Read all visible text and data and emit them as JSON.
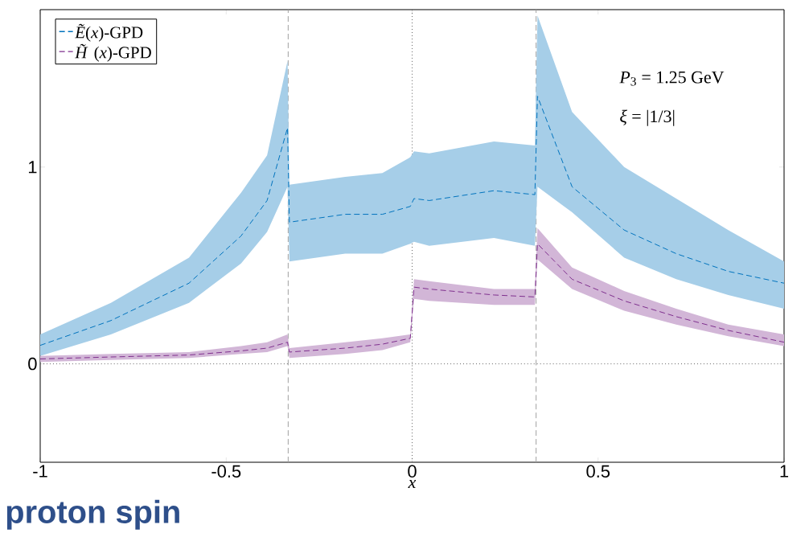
{
  "chart_data": {
    "type": "line",
    "xlabel": "x",
    "xlim": [
      -1,
      1
    ],
    "ylim": [
      -0.5,
      1.8
    ],
    "xticks": [
      -1,
      -0.5,
      0,
      0.5,
      1
    ],
    "yticks": [
      0,
      1
    ],
    "line_style": "dashed",
    "legend": "top left",
    "grid": false,
    "marker": "none",
    "x": [
      -1,
      -0.81,
      -0.6,
      -0.46,
      -0.39,
      -0.335,
      -0.33,
      -0.18,
      -0.08,
      -0.005,
      0.005,
      0.046,
      0.22,
      0.33,
      0.337,
      0.43,
      0.57,
      0.71,
      0.85,
      1
    ],
    "series": [
      {
        "name": "*Ẽ*(*x*)-GPD",
        "color": "#0072bd",
        "values": [
          0.094,
          0.22,
          0.41,
          0.65,
          0.83,
          1.2,
          0.72,
          0.76,
          0.76,
          0.8,
          0.84,
          0.83,
          0.88,
          0.86,
          1.36,
          0.9,
          0.68,
          0.56,
          0.47,
          0.41
        ],
        "lower": [
          0.04,
          0.15,
          0.31,
          0.51,
          0.67,
          0.9,
          0.52,
          0.56,
          0.56,
          0.61,
          0.62,
          0.6,
          0.64,
          0.6,
          0.9,
          0.77,
          0.54,
          0.43,
          0.35,
          0.28
        ],
        "upper": [
          0.15,
          0.31,
          0.54,
          0.87,
          1.06,
          1.54,
          0.91,
          0.95,
          0.97,
          1.05,
          1.08,
          1.07,
          1.13,
          1.11,
          1.77,
          1.28,
          1.0,
          0.84,
          0.68,
          0.52
        ]
      },
      {
        "name": "*H̃*(*x*)-GPD",
        "color": "#7e2f8e",
        "values": [
          0.025,
          0.035,
          0.045,
          0.066,
          0.08,
          0.11,
          0.06,
          0.08,
          0.1,
          0.13,
          0.39,
          0.38,
          0.35,
          0.34,
          0.61,
          0.43,
          0.32,
          0.24,
          0.17,
          0.11
        ],
        "lower": [
          0.01,
          0.02,
          0.03,
          0.05,
          0.06,
          0.09,
          0.03,
          0.05,
          0.07,
          0.11,
          0.33,
          0.32,
          0.3,
          0.3,
          0.53,
          0.38,
          0.27,
          0.2,
          0.14,
          0.09
        ],
        "upper": [
          0.04,
          0.05,
          0.06,
          0.09,
          0.11,
          0.15,
          0.08,
          0.11,
          0.13,
          0.15,
          0.43,
          0.42,
          0.38,
          0.38,
          0.69,
          0.49,
          0.37,
          0.28,
          0.2,
          0.15
        ]
      }
    ],
    "ref_lines": [
      {
        "axis": "x",
        "value": -0.3333,
        "color": "#a0a0a0",
        "line_style": "dashed"
      },
      {
        "axis": "x",
        "value": 0.3333,
        "color": "#a0a0a0",
        "line_style": "dashed"
      },
      {
        "axis": "x",
        "value": 0,
        "color": "#606060",
        "line_style": "dotted"
      },
      {
        "axis": "y",
        "value": 0,
        "color": "#606060",
        "line_style": "dotted"
      }
    ],
    "annotations": [
      "*P*$_{3}$ = 1.25 GeV",
      "*ξ* = |1/3|",
      "proton spin"
    ]
  }
}
